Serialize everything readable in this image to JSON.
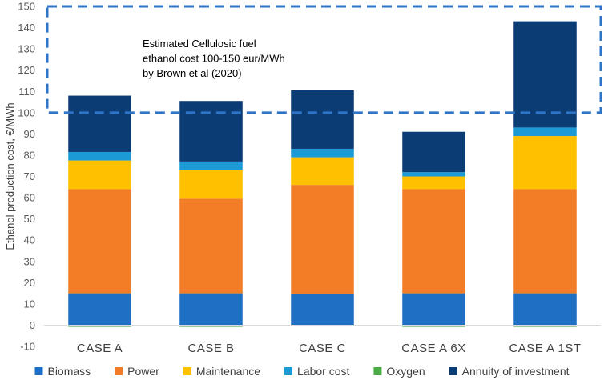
{
  "chart_data": {
    "type": "bar",
    "stacked": true,
    "categories": [
      "CASE A",
      "CASE B",
      "CASE C",
      "CASE A 6X",
      "CASE A 1ST"
    ],
    "series": [
      {
        "name": "Biomass",
        "color": "#1f6fc5",
        "values": [
          15,
          15,
          14.5,
          15,
          15
        ]
      },
      {
        "name": "Power",
        "color": "#f27d26",
        "values": [
          49,
          44.5,
          51.5,
          49,
          49
        ]
      },
      {
        "name": "Maintenance",
        "color": "#ffc000",
        "values": [
          13.5,
          13.5,
          13,
          6,
          25
        ]
      },
      {
        "name": "Labor cost",
        "color": "#1c9ad6",
        "values": [
          4,
          4,
          4,
          2,
          4
        ]
      },
      {
        "name": "Oxygen",
        "color": "#4aac44",
        "values": [
          -0.8,
          -0.8,
          -0.6,
          -0.8,
          -0.8
        ]
      },
      {
        "name": "Annuity of investment",
        "color": "#0c3c74",
        "values": [
          26.5,
          28.5,
          27.5,
          19,
          50
        ]
      }
    ],
    "title": "",
    "xlabel": "",
    "ylabel": "Ethanol production cost, €/MWh",
    "ylim": [
      -10,
      150
    ],
    "yticks": [
      -10,
      0,
      10,
      20,
      30,
      40,
      50,
      60,
      70,
      80,
      90,
      100,
      110,
      120,
      130,
      140,
      150
    ],
    "grid": false,
    "legend": "bottom",
    "annotation": {
      "lines": [
        "Estimated Cellulosic fuel",
        "ethanol cost 100-150 eur/MWh",
        "by Brown et al (2020)"
      ],
      "range": [
        100,
        150
      ],
      "color": "#2e75c9"
    }
  }
}
